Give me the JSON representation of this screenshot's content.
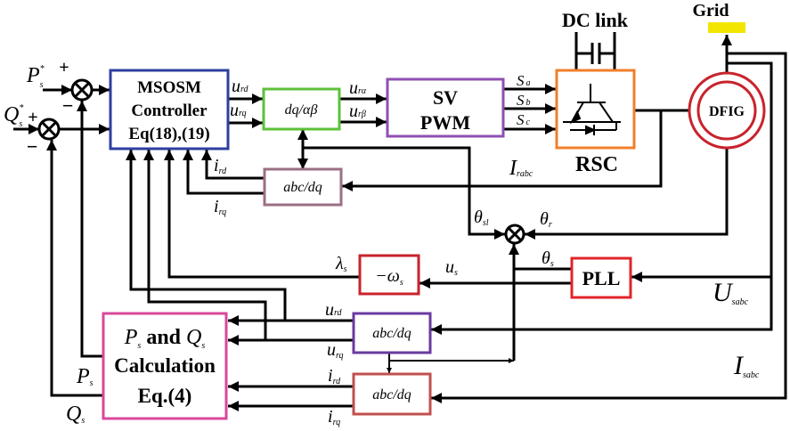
{
  "colors": {
    "controller": "#2e3fa0",
    "dq_ab": "#5cc13a",
    "svpwm": "#8e4fb3",
    "rsc": "#f07f2a",
    "dfig": "#c8232c",
    "grid": "#f2e600",
    "abcdq_rotor": "#9b6f84",
    "neg_ws": "#c8232c",
    "pll": "#e0252a",
    "pq": "#d8489b",
    "abcdq_u": "#6a3aa0",
    "abcdq_i": "#c0504d"
  },
  "blocks": {
    "controller": [
      "MSOSM",
      "Controller",
      "Eq(18),(19)"
    ],
    "dq_ab": "dq/αβ",
    "svpwm": [
      "SV",
      "PWM"
    ],
    "rsc": "RSC",
    "dc_link": "DC link",
    "dfig": "DFIG",
    "grid": "Grid",
    "abcdq_rotor": "abc/dq",
    "neg_ws": {
      "main": "−ω",
      "sub": "s"
    },
    "pll": "PLL",
    "pq": {
      "line1_p": "P",
      "line1_ps": "s",
      "line1_and": " and ",
      "line1_q": "Q",
      "line1_qs": "s",
      "line2": "Calculation",
      "line3": "Eq.(4)"
    },
    "abcdq_u": "abc/dq",
    "abcdq_i": "abc/dq"
  },
  "signs": {
    "p_plus": "+",
    "p_minus": "−",
    "q_plus": "+",
    "q_minus": "−"
  },
  "signals": {
    "ps_ref": {
      "main": "P",
      "sub": "s",
      "sup": "*"
    },
    "qs_ref": {
      "main": "Q",
      "sub": "s",
      "sup": "*"
    },
    "urd": {
      "main": "u",
      "sub": "rd"
    },
    "urq": {
      "main": "u",
      "sub": "rq"
    },
    "ura": {
      "main": "u",
      "sub": "rα"
    },
    "urb": {
      "main": "u",
      "sub": "rβ"
    },
    "sa": {
      "main": "S",
      "sub": "a"
    },
    "sb": {
      "main": "S",
      "sub": "b"
    },
    "sc": {
      "main": "S",
      "sub": "c"
    },
    "ird": {
      "main": "i",
      "sub": "rd"
    },
    "irq": {
      "main": "i",
      "sub": "rq"
    },
    "irabc": {
      "main": "I",
      "sub": "rabc"
    },
    "theta_sl": {
      "main": "θ",
      "sub": "sl"
    },
    "theta_r": {
      "main": "θ",
      "sub": "r"
    },
    "theta_s": {
      "main": "θ",
      "sub": "s"
    },
    "lambda_s": {
      "main": "λ",
      "sub": "s"
    },
    "us": {
      "main": "u",
      "sub": "s"
    },
    "usabc": {
      "main": "U",
      "sub": "sabc"
    },
    "isabc": {
      "main": "I",
      "sub": "sabc"
    },
    "urd2": {
      "main": "u",
      "sub": "rd"
    },
    "urq2": {
      "main": "u",
      "sub": "rq"
    },
    "ird2": {
      "main": "i",
      "sub": "rd"
    },
    "irq2": {
      "main": "i",
      "sub": "rq"
    },
    "ps": {
      "main": "P",
      "sub": "s"
    },
    "qs": {
      "main": "Q",
      "sub": "s"
    }
  }
}
